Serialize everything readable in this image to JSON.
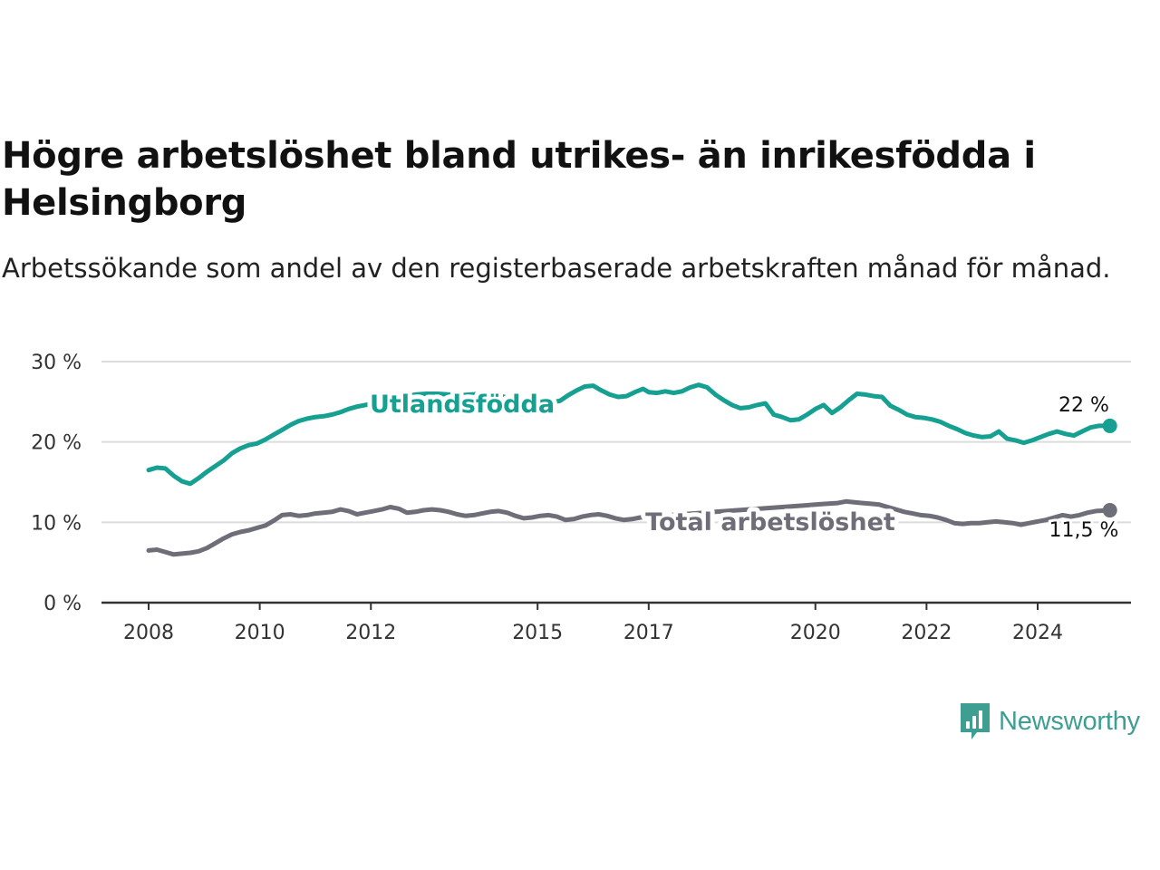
{
  "header": {
    "title": "Högre arbetslöshet bland utrikes- än inrikesfödda i Helsingborg",
    "subtitle": "Arbetssökande som andel av den registerbaserade arbetskraften månad för månad."
  },
  "branding": {
    "logo_text": "Newsworthy",
    "logo_icon": "bar-chart-speech-bubble-icon",
    "color": "#3f9e92"
  },
  "colors": {
    "utlandsfodda": "#16a092",
    "total": "#6e6e78",
    "grid": "#dcdcdc",
    "axis": "#333333"
  },
  "chart_data": {
    "type": "line",
    "ylim": [
      0,
      30
    ],
    "yticks": [
      0,
      10,
      20,
      30
    ],
    "ytick_labels": [
      "0 %",
      "10 %",
      "20 %",
      "30 %"
    ],
    "xlim": [
      2008,
      2025.7
    ],
    "xticks": [
      2008,
      2010,
      2012,
      2015,
      2017,
      2020,
      2022,
      2024
    ],
    "xtick_labels": [
      "2008",
      "2010",
      "2012",
      "2015",
      "2017",
      "2020",
      "2022",
      "2024"
    ],
    "grid": true,
    "series": [
      {
        "name": "Utlandsfödda",
        "key": "utlandsfodda",
        "end_label": "22 %",
        "points": [
          [
            2008.0,
            16.5
          ],
          [
            2008.15,
            16.8
          ],
          [
            2008.3,
            16.7
          ],
          [
            2008.45,
            15.8
          ],
          [
            2008.6,
            15.1
          ],
          [
            2008.75,
            14.8
          ],
          [
            2008.9,
            15.5
          ],
          [
            2009.05,
            16.3
          ],
          [
            2009.2,
            17.0
          ],
          [
            2009.35,
            17.7
          ],
          [
            2009.5,
            18.6
          ],
          [
            2009.65,
            19.2
          ],
          [
            2009.8,
            19.6
          ],
          [
            2009.95,
            19.8
          ],
          [
            2010.1,
            20.3
          ],
          [
            2010.25,
            20.9
          ],
          [
            2010.4,
            21.5
          ],
          [
            2010.55,
            22.1
          ],
          [
            2010.7,
            22.6
          ],
          [
            2010.85,
            22.9
          ],
          [
            2011.0,
            23.1
          ],
          [
            2011.15,
            23.2
          ],
          [
            2011.3,
            23.4
          ],
          [
            2011.45,
            23.7
          ],
          [
            2011.6,
            24.1
          ],
          [
            2011.75,
            24.4
          ],
          [
            2011.9,
            24.6
          ],
          [
            2012.05,
            24.8
          ],
          [
            2012.2,
            25.0
          ],
          [
            2012.35,
            25.2
          ],
          [
            2012.5,
            25.5
          ],
          [
            2012.65,
            25.7
          ],
          [
            2012.8,
            25.9
          ],
          [
            2013.0,
            26.0
          ],
          [
            2013.2,
            26.0
          ],
          [
            2013.4,
            25.9
          ],
          [
            2013.6,
            25.8
          ],
          [
            2013.8,
            25.9
          ],
          [
            2014.0,
            26.0
          ],
          [
            2014.2,
            25.9
          ],
          [
            2014.4,
            25.6
          ],
          [
            2014.6,
            25.2
          ],
          [
            2014.8,
            25.0
          ],
          [
            2015.0,
            24.9
          ],
          [
            2015.2,
            24.9
          ],
          [
            2015.4,
            25.1
          ],
          [
            2015.55,
            25.8
          ],
          [
            2015.7,
            26.4
          ],
          [
            2015.85,
            26.9
          ],
          [
            2016.0,
            27.0
          ],
          [
            2016.15,
            26.4
          ],
          [
            2016.3,
            25.9
          ],
          [
            2016.45,
            25.6
          ],
          [
            2016.6,
            25.7
          ],
          [
            2016.75,
            26.2
          ],
          [
            2016.9,
            26.6
          ],
          [
            2017.0,
            26.2
          ],
          [
            2017.15,
            26.1
          ],
          [
            2017.3,
            26.3
          ],
          [
            2017.45,
            26.1
          ],
          [
            2017.6,
            26.3
          ],
          [
            2017.75,
            26.8
          ],
          [
            2017.9,
            27.1
          ],
          [
            2018.05,
            26.8
          ],
          [
            2018.2,
            25.9
          ],
          [
            2018.35,
            25.2
          ],
          [
            2018.5,
            24.6
          ],
          [
            2018.65,
            24.2
          ],
          [
            2018.8,
            24.3
          ],
          [
            2018.95,
            24.6
          ],
          [
            2019.1,
            24.8
          ],
          [
            2019.25,
            23.4
          ],
          [
            2019.4,
            23.1
          ],
          [
            2019.55,
            22.7
          ],
          [
            2019.7,
            22.8
          ],
          [
            2019.85,
            23.4
          ],
          [
            2020.0,
            24.1
          ],
          [
            2020.15,
            24.6
          ],
          [
            2020.3,
            23.6
          ],
          [
            2020.45,
            24.3
          ],
          [
            2020.6,
            25.2
          ],
          [
            2020.75,
            26.0
          ],
          [
            2020.9,
            25.9
          ],
          [
            2021.05,
            25.7
          ],
          [
            2021.2,
            25.6
          ],
          [
            2021.35,
            24.5
          ],
          [
            2021.5,
            24.0
          ],
          [
            2021.65,
            23.4
          ],
          [
            2021.8,
            23.1
          ],
          [
            2021.95,
            23.0
          ],
          [
            2022.1,
            22.8
          ],
          [
            2022.25,
            22.5
          ],
          [
            2022.4,
            22.0
          ],
          [
            2022.55,
            21.6
          ],
          [
            2022.7,
            21.1
          ],
          [
            2022.85,
            20.8
          ],
          [
            2023.0,
            20.6
          ],
          [
            2023.15,
            20.7
          ],
          [
            2023.3,
            21.3
          ],
          [
            2023.45,
            20.4
          ],
          [
            2023.6,
            20.2
          ],
          [
            2023.75,
            19.9
          ],
          [
            2023.9,
            20.2
          ],
          [
            2024.05,
            20.6
          ],
          [
            2024.2,
            21.0
          ],
          [
            2024.35,
            21.3
          ],
          [
            2024.5,
            21.0
          ],
          [
            2024.65,
            20.8
          ],
          [
            2024.8,
            21.3
          ],
          [
            2024.95,
            21.8
          ],
          [
            2025.1,
            22.0
          ],
          [
            2025.3,
            22.0
          ]
        ]
      },
      {
        "name": "Total arbetslöshet",
        "key": "total",
        "end_label": "11,5 %",
        "points": [
          [
            2008.0,
            6.5
          ],
          [
            2008.15,
            6.6
          ],
          [
            2008.3,
            6.3
          ],
          [
            2008.45,
            6.0
          ],
          [
            2008.6,
            6.1
          ],
          [
            2008.75,
            6.2
          ],
          [
            2008.9,
            6.4
          ],
          [
            2009.05,
            6.8
          ],
          [
            2009.2,
            7.4
          ],
          [
            2009.35,
            8.0
          ],
          [
            2009.5,
            8.5
          ],
          [
            2009.65,
            8.8
          ],
          [
            2009.8,
            9.0
          ],
          [
            2009.95,
            9.3
          ],
          [
            2010.1,
            9.6
          ],
          [
            2010.25,
            10.2
          ],
          [
            2010.4,
            10.9
          ],
          [
            2010.55,
            11.0
          ],
          [
            2010.7,
            10.8
          ],
          [
            2010.85,
            10.9
          ],
          [
            2011.0,
            11.1
          ],
          [
            2011.15,
            11.2
          ],
          [
            2011.3,
            11.3
          ],
          [
            2011.45,
            11.6
          ],
          [
            2011.6,
            11.4
          ],
          [
            2011.75,
            11.0
          ],
          [
            2011.9,
            11.2
          ],
          [
            2012.05,
            11.4
          ],
          [
            2012.2,
            11.6
          ],
          [
            2012.35,
            11.9
          ],
          [
            2012.5,
            11.7
          ],
          [
            2012.65,
            11.2
          ],
          [
            2012.8,
            11.3
          ],
          [
            2012.95,
            11.5
          ],
          [
            2013.1,
            11.6
          ],
          [
            2013.25,
            11.5
          ],
          [
            2013.4,
            11.3
          ],
          [
            2013.55,
            11.0
          ],
          [
            2013.7,
            10.8
          ],
          [
            2013.85,
            10.9
          ],
          [
            2014.0,
            11.1
          ],
          [
            2014.15,
            11.3
          ],
          [
            2014.3,
            11.4
          ],
          [
            2014.45,
            11.2
          ],
          [
            2014.6,
            10.8
          ],
          [
            2014.75,
            10.5
          ],
          [
            2014.9,
            10.6
          ],
          [
            2015.05,
            10.8
          ],
          [
            2015.2,
            10.9
          ],
          [
            2015.35,
            10.7
          ],
          [
            2015.5,
            10.3
          ],
          [
            2015.65,
            10.4
          ],
          [
            2015.8,
            10.7
          ],
          [
            2015.95,
            10.9
          ],
          [
            2016.1,
            11.0
          ],
          [
            2016.25,
            10.8
          ],
          [
            2016.4,
            10.5
          ],
          [
            2016.55,
            10.3
          ],
          [
            2016.7,
            10.4
          ],
          [
            2016.85,
            10.6
          ],
          [
            2017.0,
            10.7
          ],
          [
            2017.2,
            10.8
          ],
          [
            2017.4,
            10.9
          ],
          [
            2017.6,
            11.0
          ],
          [
            2017.8,
            11.1
          ],
          [
            2018.0,
            11.2
          ],
          [
            2018.2,
            11.3
          ],
          [
            2018.4,
            11.4
          ],
          [
            2018.6,
            11.5
          ],
          [
            2018.8,
            11.6
          ],
          [
            2019.0,
            11.7
          ],
          [
            2019.2,
            11.8
          ],
          [
            2019.4,
            11.9
          ],
          [
            2019.6,
            12.0
          ],
          [
            2019.8,
            12.1
          ],
          [
            2020.0,
            12.2
          ],
          [
            2020.2,
            12.3
          ],
          [
            2020.4,
            12.4
          ],
          [
            2020.55,
            12.6
          ],
          [
            2020.7,
            12.5
          ],
          [
            2020.85,
            12.4
          ],
          [
            2021.0,
            12.3
          ],
          [
            2021.15,
            12.2
          ],
          [
            2021.3,
            11.9
          ],
          [
            2021.45,
            11.6
          ],
          [
            2021.6,
            11.3
          ],
          [
            2021.75,
            11.1
          ],
          [
            2021.9,
            10.9
          ],
          [
            2022.05,
            10.8
          ],
          [
            2022.2,
            10.6
          ],
          [
            2022.35,
            10.3
          ],
          [
            2022.5,
            9.9
          ],
          [
            2022.65,
            9.8
          ],
          [
            2022.8,
            9.9
          ],
          [
            2022.95,
            9.9
          ],
          [
            2023.1,
            10.0
          ],
          [
            2023.25,
            10.1
          ],
          [
            2023.4,
            10.0
          ],
          [
            2023.55,
            9.9
          ],
          [
            2023.7,
            9.7
          ],
          [
            2023.85,
            9.9
          ],
          [
            2024.0,
            10.1
          ],
          [
            2024.15,
            10.3
          ],
          [
            2024.3,
            10.6
          ],
          [
            2024.45,
            10.9
          ],
          [
            2024.6,
            10.7
          ],
          [
            2024.75,
            10.9
          ],
          [
            2024.9,
            11.2
          ],
          [
            2025.05,
            11.4
          ],
          [
            2025.3,
            11.5
          ]
        ]
      }
    ]
  }
}
